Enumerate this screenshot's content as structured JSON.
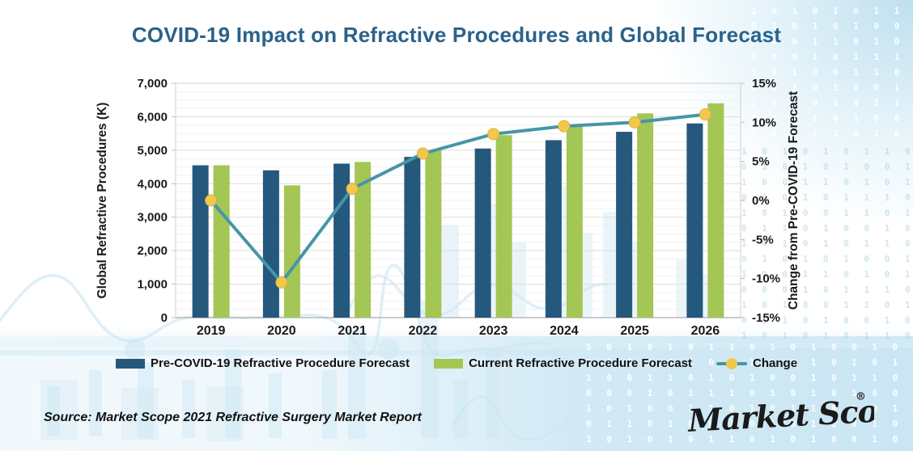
{
  "title": "COVID-19 Impact on Refractive Procedures and Global Forecast",
  "source": "Source: Market Scope 2021 Refractive Surgery Market Report",
  "logo": {
    "text": "Market Scope",
    "registered": "®"
  },
  "colors": {
    "title": "#2B628A",
    "pre_covid_bar": "#25587D",
    "current_bar": "#A3C655",
    "change_line": "#4695A8",
    "change_marker": "#F2C74E",
    "change_marker_stroke": "#E0B13C",
    "axis_text": "#1A1A1A",
    "grid_major": "#DCDCDC",
    "grid_minor": "#F1F1F1",
    "plot_border": "#CFCFCF",
    "logo_blue": "#2E5E8C",
    "decor_blue": "#CDE7F3"
  },
  "chart_data": {
    "type": "combo_bar_line",
    "categories": [
      "2019",
      "2020",
      "2021",
      "2022",
      "2023",
      "2024",
      "2025",
      "2026"
    ],
    "series": [
      {
        "name": "Pre-COVID-19 Refractive Procedure Forecast",
        "type": "bar",
        "axis": "left",
        "color": "#25587D",
        "values": [
          4550,
          4400,
          4600,
          4800,
          5050,
          5300,
          5550,
          5800
        ]
      },
      {
        "name": "Current Refractive Procedure Forecast",
        "type": "bar",
        "axis": "left",
        "color": "#A3C655",
        "values": [
          4550,
          3950,
          4650,
          5000,
          5450,
          5700,
          6100,
          6400
        ]
      },
      {
        "name": "Change",
        "type": "line",
        "axis": "right",
        "color": "#4695A8",
        "marker_color": "#F2C74E",
        "values": [
          0,
          -10.5,
          1.5,
          6,
          8.5,
          9.5,
          10,
          11
        ]
      }
    ],
    "left_axis": {
      "label": "Global Refractive Procedures (K)",
      "min": 0,
      "max": 7000,
      "tick_step": 1000,
      "ticks": [
        "0",
        "1,000",
        "2,000",
        "3,000",
        "4,000",
        "5,000",
        "6,000",
        "7,000"
      ]
    },
    "right_axis": {
      "label": "Change from Pre-COVID-19 Forecast",
      "min": -15,
      "max": 15,
      "tick_step": 5,
      "unit": "%",
      "ticks": [
        "-15%",
        "-10%",
        "-5%",
        "0%",
        "5%",
        "10%",
        "15%"
      ]
    },
    "grid": {
      "minor_every": 250,
      "major_every": 1000,
      "gridlines": "horizontal"
    },
    "legend_position": "bottom"
  },
  "decor": {
    "binary_rows": [
      "1 0 1 0 1 0 1 1 0 1 0 1 0 0 1 0 1 0 1 0 1 0 0 1 1 0 1 0 1 0 1 0 0 1",
      "0 1 0 1 0 1 0 0 1 1 0 1 0 1 0 1 1 0 0 1 0 1 1 1 0 1 0 1 0 1 0 0 1 0",
      "1 0 0 1 1 0 1 0 1 0 0 1 0 1 1 0 1 0 1 1 0 1 0 0 1 0 1 0 1 1 0 1 0 1",
      "0 0 0 1 0 1 1 1 0 1 0 1 0 1 0 0 1 0 1 0 1 1 0 1 0 1 0 1 0 0 1 1 0 1",
      "1 0 1 0 0 1 1 0 1 0 1 1 0 1 0 1 0 1 0 0 1 0 1 0 1 0 1 1 0 1 0 0 1 0",
      "0 1 1 0 1 0 0 1 0 1 0 1 1 0 1 0 0 1 0 1 0 1 0 1 1 0 1 0 0 1 0 1 1 0"
    ]
  }
}
